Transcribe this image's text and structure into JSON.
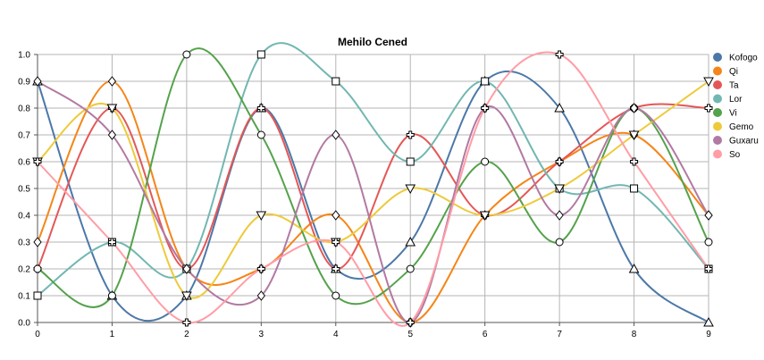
{
  "chart_data": {
    "type": "line",
    "title": "Mehilo Cened",
    "xlabel": "",
    "ylabel": "",
    "x": [
      0,
      1,
      2,
      3,
      4,
      5,
      6,
      7,
      8,
      9
    ],
    "x_ticks": [
      "0",
      "1",
      "2",
      "3",
      "4",
      "5",
      "6",
      "7",
      "8",
      "9"
    ],
    "y_ticks": [
      "0.0",
      "0.1",
      "0.2",
      "0.3",
      "0.4",
      "0.5",
      "0.6",
      "0.7",
      "0.8",
      "0.9",
      "1.0"
    ],
    "xlim": [
      0,
      9
    ],
    "ylim": [
      0,
      1.0
    ],
    "grid": true,
    "smooth": true,
    "legend_position": "right",
    "series": [
      {
        "name": "Kofogo",
        "color": "#4c78a8",
        "marker": "triangle-up",
        "values": [
          0.9,
          0.1,
          0.1,
          0.8,
          0.2,
          0.3,
          0.9,
          0.8,
          0.2,
          0.0
        ]
      },
      {
        "name": "Qi",
        "color": "#f58518",
        "marker": "diamond",
        "values": [
          0.3,
          0.9,
          0.2,
          0.2,
          0.4,
          0.0,
          0.4,
          0.6,
          0.7,
          0.4
        ]
      },
      {
        "name": "Ta",
        "color": "#e45756",
        "marker": "cross",
        "values": [
          0.2,
          0.8,
          0.2,
          0.8,
          0.2,
          0.7,
          0.4,
          0.6,
          0.8,
          0.8
        ]
      },
      {
        "name": "Lor",
        "color": "#72b7b2",
        "marker": "square",
        "values": [
          0.1,
          0.3,
          0.2,
          1.0,
          0.9,
          0.6,
          0.9,
          0.5,
          0.5,
          0.2
        ]
      },
      {
        "name": "Vi",
        "color": "#54a24b",
        "marker": "circle",
        "values": [
          0.2,
          0.1,
          1.0,
          0.7,
          0.1,
          0.2,
          0.6,
          0.3,
          0.8,
          0.3
        ]
      },
      {
        "name": "Gemo",
        "color": "#eeca3b",
        "marker": "triangle-down",
        "values": [
          0.6,
          0.8,
          0.1,
          0.4,
          0.3,
          0.5,
          0.4,
          0.5,
          0.7,
          0.9
        ]
      },
      {
        "name": "Guxaru",
        "color": "#b279a2",
        "marker": "diamond",
        "values": [
          0.9,
          0.7,
          0.2,
          0.1,
          0.7,
          0.0,
          0.8,
          0.4,
          0.8,
          0.4
        ]
      },
      {
        "name": "So",
        "color": "#ff9da6",
        "marker": "cross",
        "values": [
          0.6,
          0.3,
          0.0,
          0.2,
          0.3,
          0.0,
          0.8,
          1.0,
          0.6,
          0.2
        ]
      }
    ]
  }
}
